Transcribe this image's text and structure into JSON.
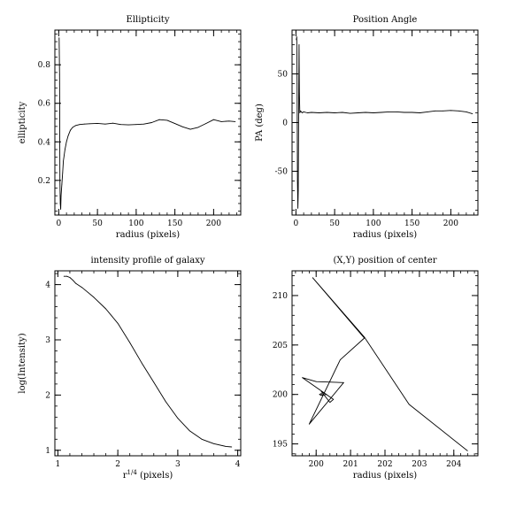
{
  "chart_data": [
    {
      "type": "line",
      "title": "Ellipticity",
      "xlabel": "radius (pixels)",
      "ylabel": "ellipticity",
      "xlim": [
        -5,
        235
      ],
      "ylim": [
        0.02,
        0.98
      ],
      "xticks": [
        0,
        50,
        100,
        150,
        200
      ],
      "yticks": [
        0.2,
        0.4,
        0.6,
        0.8
      ],
      "xticklabels": [
        "0",
        "50",
        "100",
        "150",
        "200"
      ],
      "yticklabels": [
        "0.2",
        "0.4",
        "0.6",
        "0.8"
      ],
      "grid": false,
      "series": [
        {
          "x": [
            0.5,
            1.0,
            1.5,
            2.0,
            2.5,
            3.0,
            4,
            5,
            6,
            8,
            10,
            12,
            15,
            18,
            22,
            27,
            33,
            40,
            50,
            60,
            70,
            80,
            90,
            100,
            110,
            120,
            130,
            140,
            150,
            160,
            170,
            180,
            190,
            200,
            210,
            220,
            228
          ],
          "y": [
            0.94,
            0.75,
            0.2,
            0.08,
            0.05,
            0.12,
            0.18,
            0.24,
            0.3,
            0.36,
            0.4,
            0.43,
            0.46,
            0.475,
            0.485,
            0.49,
            0.492,
            0.494,
            0.496,
            0.492,
            0.497,
            0.49,
            0.488,
            0.49,
            0.492,
            0.5,
            0.515,
            0.512,
            0.495,
            0.478,
            0.465,
            0.475,
            0.495,
            0.515,
            0.505,
            0.508,
            0.505
          ]
        }
      ]
    },
    {
      "type": "line",
      "title": "Position Angle",
      "xlabel": "radius (pixels)",
      "ylabel": "PA (deg)",
      "xlim": [
        -5,
        235
      ],
      "ylim": [
        -95,
        95
      ],
      "xticks": [
        0,
        50,
        100,
        150,
        200
      ],
      "yticks": [
        -50,
        0,
        50
      ],
      "xticklabels": [
        "0",
        "50",
        "100",
        "150",
        "200"
      ],
      "yticklabels": [
        "-50",
        "0",
        "50"
      ],
      "grid": false,
      "series": [
        {
          "x": [
            0.5,
            1.0,
            1.5,
            2.0,
            2.5,
            3.0,
            3.5,
            4,
            4.5,
            5,
            6,
            7,
            8,
            10,
            15,
            20,
            30,
            40,
            50,
            60,
            70,
            80,
            90,
            100,
            110,
            120,
            130,
            140,
            150,
            160,
            170,
            180,
            190,
            200,
            210,
            220,
            228
          ],
          "y": [
            85,
            88,
            40,
            -60,
            -88,
            -70,
            5,
            80,
            30,
            10,
            12,
            11,
            10,
            11,
            10,
            10.5,
            10,
            10.5,
            10,
            10.5,
            9.5,
            10,
            10.5,
            10,
            10.5,
            11,
            11,
            10.5,
            10.5,
            10,
            11,
            12,
            12,
            12.5,
            12,
            11,
            9
          ]
        }
      ]
    },
    {
      "type": "line",
      "title": "intensity profile of galaxy",
      "xlabel": "r^1/4 (pixels)",
      "ylabel": "log(Intensity)",
      "xlim": [
        0.95,
        4.05
      ],
      "ylim": [
        0.9,
        4.25
      ],
      "xticks": [
        1,
        2,
        3,
        4
      ],
      "yticks": [
        1,
        2,
        3,
        4
      ],
      "xticklabels": [
        "1",
        "2",
        "3",
        "4"
      ],
      "yticklabels": [
        "1",
        "2",
        "3",
        "4"
      ],
      "grid": false,
      "series": [
        {
          "x": [
            1.1,
            1.15,
            1.2,
            1.25,
            1.3,
            1.4,
            1.5,
            1.6,
            1.8,
            2.0,
            2.2,
            2.4,
            2.6,
            2.8,
            3.0,
            3.2,
            3.4,
            3.6,
            3.8,
            3.9
          ],
          "y": [
            4.15,
            4.15,
            4.13,
            4.08,
            4.02,
            3.95,
            3.86,
            3.77,
            3.56,
            3.3,
            2.95,
            2.58,
            2.23,
            1.88,
            1.58,
            1.35,
            1.2,
            1.12,
            1.07,
            1.06
          ]
        }
      ]
    },
    {
      "type": "line",
      "title": "(X,Y) position of center",
      "xlabel": "radius (pixels)",
      "ylabel": "",
      "xlim": [
        199.3,
        204.7
      ],
      "ylim": [
        193.8,
        212.5
      ],
      "xticks": [
        200,
        201,
        202,
        203,
        204
      ],
      "yticks": [
        195,
        200,
        205,
        210
      ],
      "xticklabels": [
        "200",
        "201",
        "202",
        "203",
        "204"
      ],
      "yticklabels": [
        "195",
        "200",
        "205",
        "210"
      ],
      "grid": false,
      "series": [
        {
          "x": [
            200.2,
            200.15,
            200.1,
            200.15,
            200.3,
            200.15,
            200.4,
            200.5,
            199.6,
            200.0,
            200.8,
            199.8,
            200.7,
            201.4,
            199.9,
            201.4,
            202.7,
            204.4
          ],
          "y": [
            199.9,
            200.1,
            200.0,
            199.9,
            200.0,
            200.3,
            199.2,
            199.5,
            201.7,
            201.3,
            201.2,
            197.0,
            203.5,
            205.7,
            211.8,
            205.8,
            199.0,
            194.3
          ]
        }
      ]
    }
  ]
}
